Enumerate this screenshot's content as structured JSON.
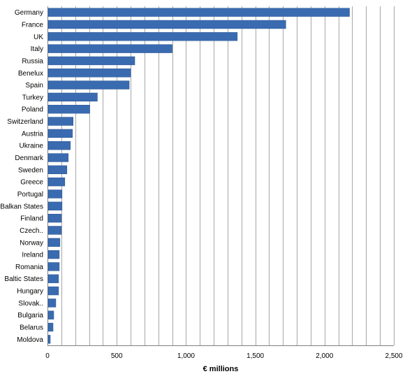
{
  "chart_data": {
    "type": "bar",
    "orientation": "horizontal",
    "categories": [
      "Germany",
      "France",
      "UK",
      "Italy",
      "Russia",
      "Benelux",
      "Spain",
      "Turkey",
      "Poland",
      "Switzerland",
      "Austria",
      "Ukraine",
      "Denmark",
      "Sweden",
      "Greece",
      "Portugal",
      "Balkan States",
      "Finland",
      "Czech..",
      "Norway",
      "Ireland",
      "Romania",
      "Baltic States",
      "Hungary",
      "Slovak..",
      "Bulgaria",
      "Belarus",
      "Moldova"
    ],
    "values": [
      2180,
      1720,
      1370,
      900,
      630,
      600,
      590,
      360,
      305,
      185,
      180,
      165,
      150,
      140,
      125,
      105,
      105,
      100,
      100,
      90,
      85,
      85,
      80,
      80,
      60,
      45,
      40,
      20
    ],
    "xlabel": "€ millions",
    "xlim": [
      0,
      2500
    ],
    "x_ticks": [
      0,
      500,
      1000,
      1500,
      2000,
      2500
    ],
    "x_tick_labels": [
      "0",
      "500",
      "1,000",
      "1,500",
      "2,000",
      "2,500"
    ],
    "grid": "vertical",
    "bar_color": "#3A6BB0",
    "grid_color": "#A6A6A6"
  }
}
